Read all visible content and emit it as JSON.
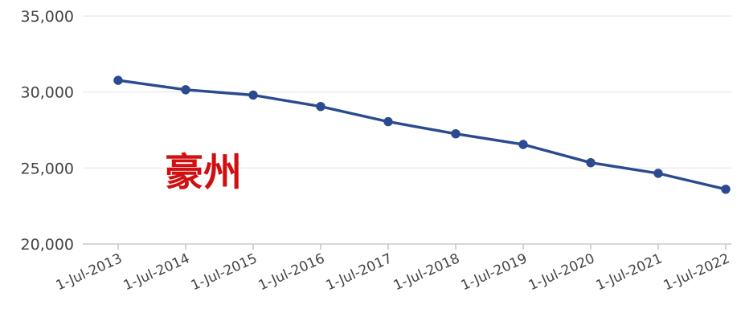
{
  "chart_data": {
    "type": "line",
    "x": [
      "1-Jul-2013",
      "1-Jul-2014",
      "1-Jul-2015",
      "1-Jul-2016",
      "1-Jul-2017",
      "1-Jul-2018",
      "1-Jul-2019",
      "1-Jul-2020",
      "1-Jul-2021",
      "1-Jul-2022"
    ],
    "series": [
      {
        "values": [
          30770,
          30150,
          29800,
          29050,
          28050,
          27250,
          26550,
          25350,
          24650,
          23600
        ]
      }
    ],
    "ylim": [
      20000,
      35000
    ],
    "y_ticks": [
      20000,
      25000,
      30000,
      35000
    ],
    "y_tick_labels": [
      "20,000",
      "25,000",
      "30,000",
      "35,000"
    ],
    "grid": true,
    "annotation": "豪州",
    "colors": {
      "line": "#2b4a8f",
      "annotation": "#d01010",
      "grid": "#ececec",
      "axis": "#c8c8c8"
    }
  }
}
